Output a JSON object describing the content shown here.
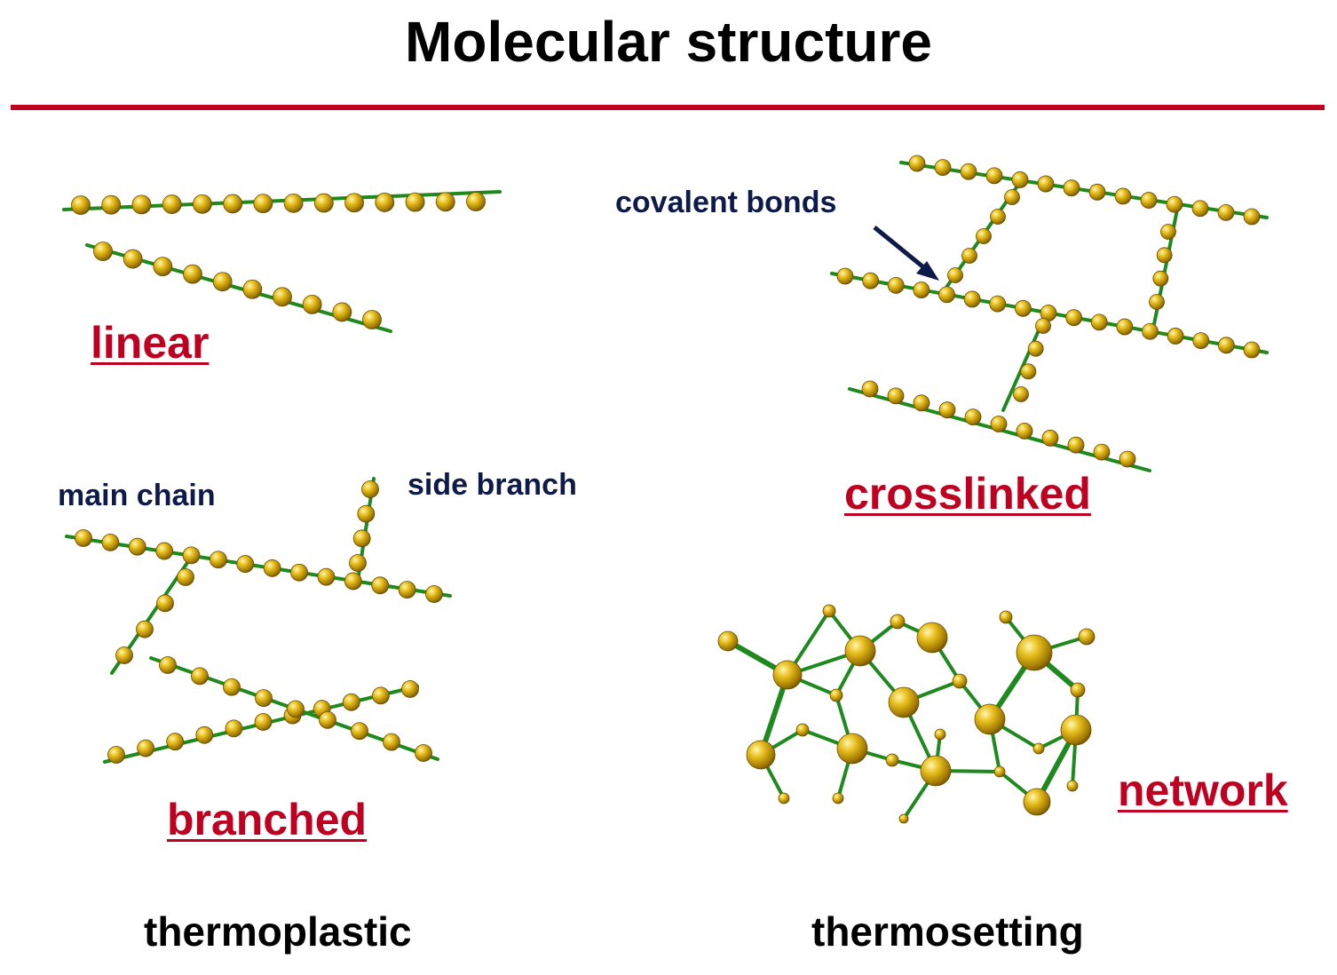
{
  "title": "Molecular structure",
  "structures": {
    "linear": "linear",
    "crosslinked": "crosslinked",
    "branched": "branched",
    "network": "network"
  },
  "annotations": {
    "covalent_bonds": "covalent bonds",
    "main_chain": "main chain",
    "side_branch": "side branch"
  },
  "categories": {
    "thermoplastic": "thermoplastic",
    "thermosetting": "thermosetting"
  },
  "colors": {
    "accent_red": "#c00020",
    "bond_green": "#1e8a1e",
    "bead_gold": "#c8a000",
    "annotation_navy": "#0d1a4a"
  }
}
